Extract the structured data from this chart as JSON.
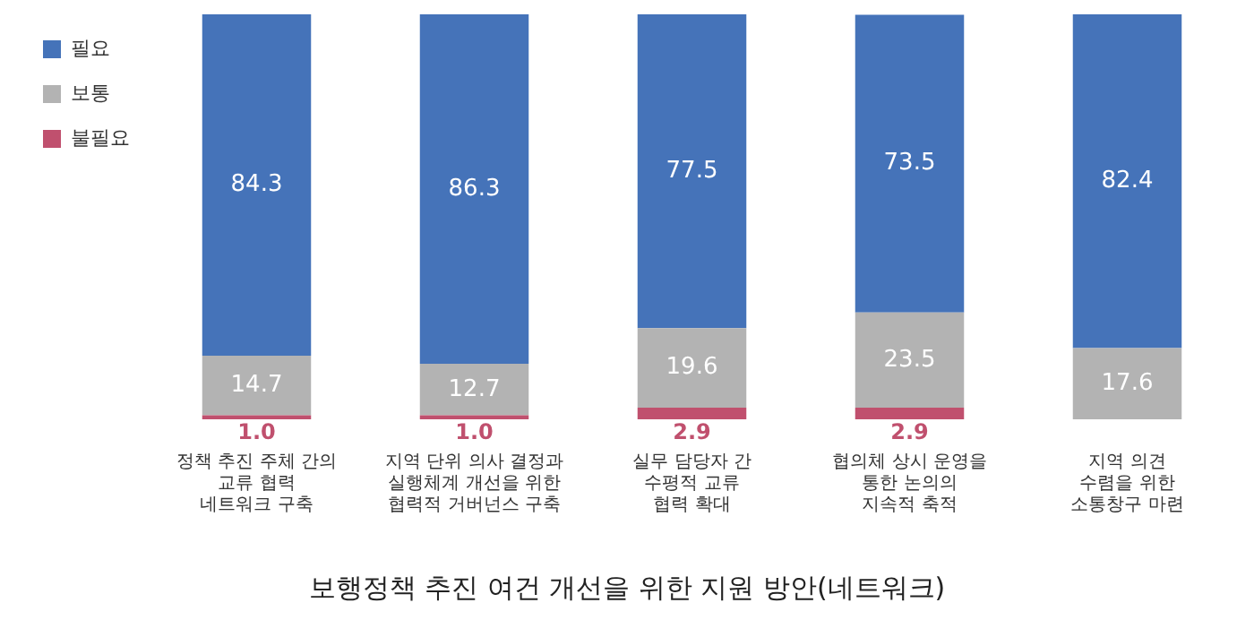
{
  "chart_data": {
    "type": "bar",
    "title": "보행정책 추진 여건 개선을 위한 지원 방안(네트워크)",
    "categories": [
      "정책 추진 주체 간의\n교류 협력\n네트워크 구축",
      "지역 단위 의사 결정과\n실행체계 개선을 위한\n협력적 거버넌스 구축",
      "실무 담당자 간\n수평적 교류\n협력 확대",
      "협의체 상시 운영을\n통한 논의의\n지속적 축적",
      "지역 의견\n수렴을 위한\n소통창구 마련"
    ],
    "stacked": true,
    "ylim": [
      0,
      100
    ],
    "tick_labels": "x",
    "legend": "top left",
    "grid": false,
    "series": [
      {
        "name": "불필요",
        "color": "#c0506e",
        "values": [
          1.0,
          1.0,
          2.9,
          2.9,
          0
        ],
        "value_labels": [
          "1.0",
          "1.0",
          "2.9",
          "2.9",
          null
        ]
      },
      {
        "name": "보통",
        "color": "#b3b3b3",
        "values": [
          14.7,
          12.7,
          19.6,
          23.5,
          17.6
        ],
        "value_labels": [
          "14.7",
          "12.7",
          "19.6",
          "23.5",
          "17.6"
        ]
      },
      {
        "name": "필요",
        "color": "#4573b9",
        "values": [
          84.3,
          86.3,
          77.5,
          73.5,
          82.4
        ],
        "value_labels": [
          "84.3",
          "86.3",
          "77.5",
          "73.5",
          "82.4"
        ]
      }
    ]
  }
}
